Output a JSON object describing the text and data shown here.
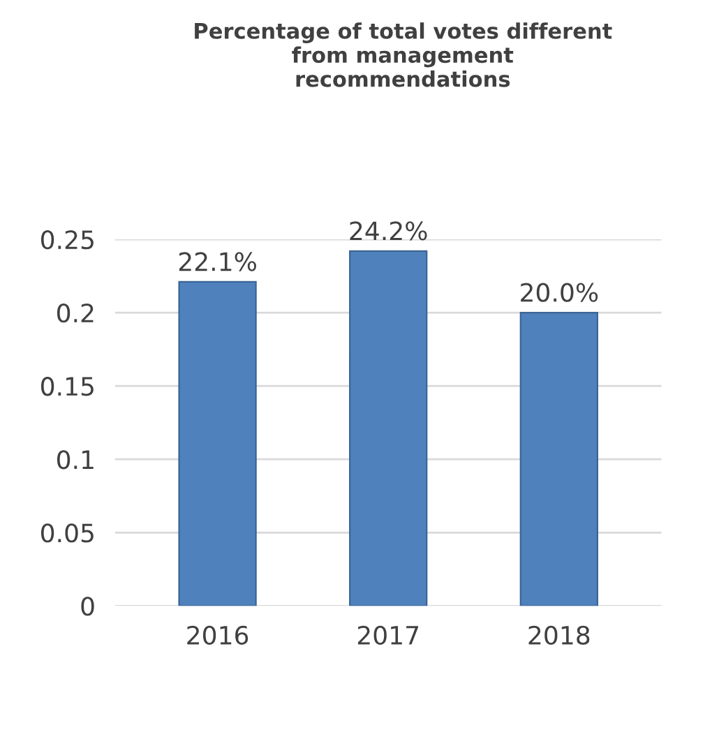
{
  "chart_data": {
    "type": "bar",
    "title": "Percentage of total votes different\nfrom management\nrecommendations",
    "categories": [
      "2016",
      "2017",
      "2018"
    ],
    "values": [
      0.221,
      0.242,
      0.2
    ],
    "value_labels": [
      "22.1%",
      "24.2%",
      "20.0%"
    ],
    "color": "#4f81bd",
    "ylim": [
      0,
      0.25
    ],
    "yticks": [
      0,
      0.05,
      0.1,
      0.15,
      0.2,
      0.25
    ],
    "grid": "y"
  }
}
